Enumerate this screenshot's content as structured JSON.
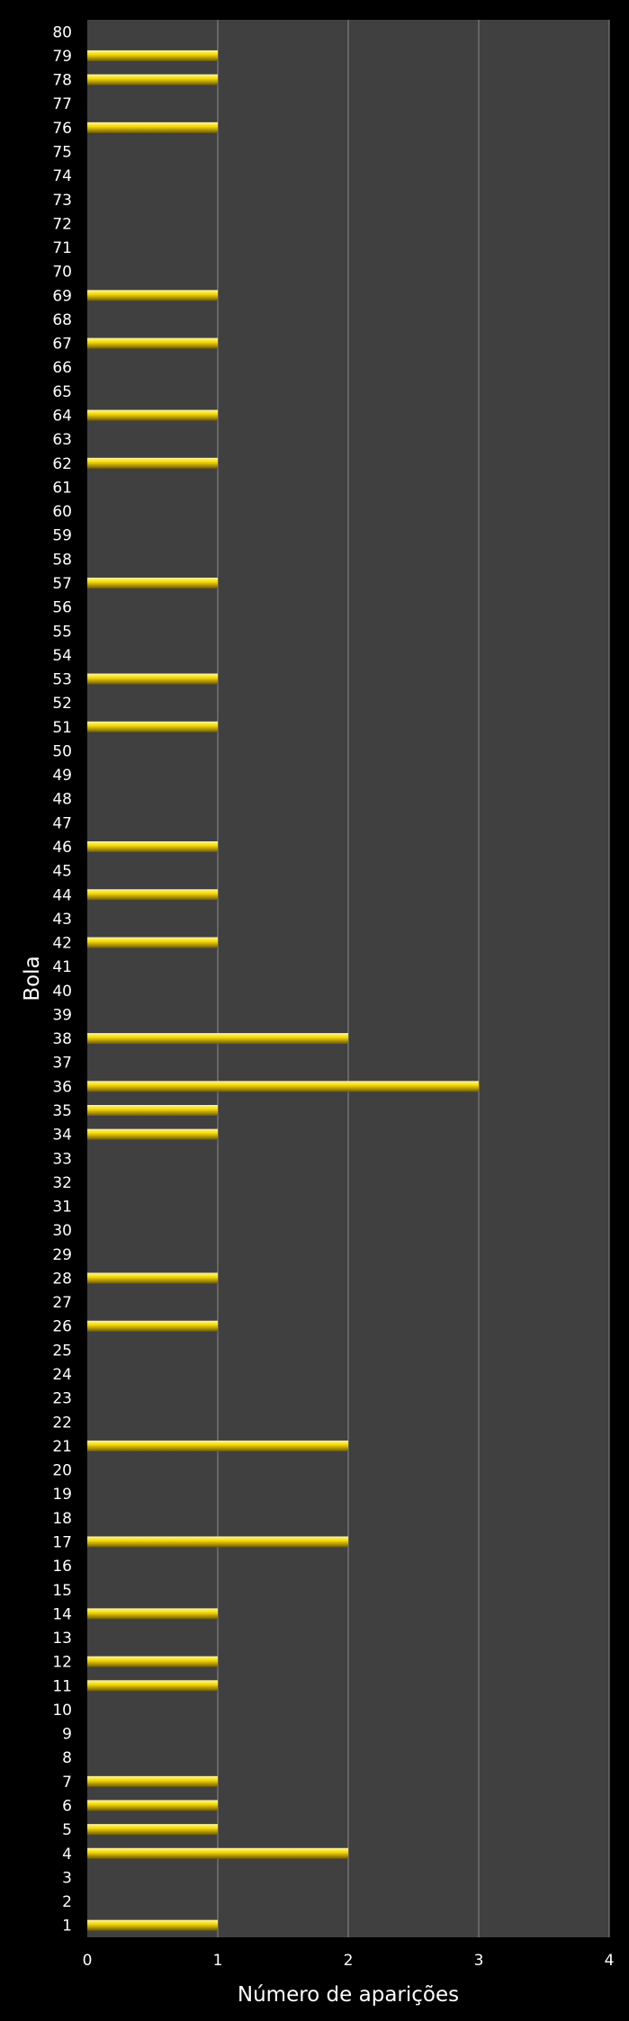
{
  "colors": {
    "page_background": "#000000",
    "plot_background": "#404040",
    "gridline": "#8a8a8a",
    "bar_top": "#fff6a0",
    "bar_mid": "#f4d800",
    "bar_bottom": "#6e5a00",
    "text": "#ffffff"
  },
  "chart_data": {
    "type": "bar",
    "orientation": "horizontal",
    "title": "",
    "xlabel": "Número de aparições",
    "ylabel": "Bola",
    "xlim": [
      0,
      4
    ],
    "x_ticks": [
      0,
      1,
      2,
      3,
      4
    ],
    "grid": true,
    "legend": "none",
    "categories": [
      "1",
      "2",
      "3",
      "4",
      "5",
      "6",
      "7",
      "8",
      "9",
      "10",
      "11",
      "12",
      "13",
      "14",
      "15",
      "16",
      "17",
      "18",
      "19",
      "20",
      "21",
      "22",
      "23",
      "24",
      "25",
      "26",
      "27",
      "28",
      "29",
      "30",
      "31",
      "32",
      "33",
      "34",
      "35",
      "36",
      "37",
      "38",
      "39",
      "40",
      "41",
      "42",
      "43",
      "44",
      "45",
      "46",
      "47",
      "48",
      "49",
      "50",
      "51",
      "52",
      "53",
      "54",
      "55",
      "56",
      "57",
      "58",
      "59",
      "60",
      "61",
      "62",
      "63",
      "64",
      "65",
      "66",
      "67",
      "68",
      "69",
      "70",
      "71",
      "72",
      "73",
      "74",
      "75",
      "76",
      "77",
      "78",
      "79",
      "80"
    ],
    "values": [
      1,
      0,
      0,
      2,
      1,
      1,
      1,
      0,
      0,
      0,
      1,
      1,
      0,
      1,
      0,
      0,
      2,
      0,
      0,
      0,
      2,
      0,
      0,
      0,
      0,
      1,
      0,
      1,
      0,
      0,
      0,
      0,
      0,
      1,
      1,
      3,
      0,
      2,
      0,
      0,
      0,
      1,
      0,
      1,
      0,
      1,
      0,
      0,
      0,
      0,
      1,
      0,
      1,
      0,
      0,
      0,
      1,
      0,
      0,
      0,
      0,
      1,
      0,
      1,
      0,
      0,
      1,
      0,
      1,
      0,
      0,
      0,
      0,
      0,
      0,
      1,
      0,
      1,
      1,
      0
    ]
  }
}
